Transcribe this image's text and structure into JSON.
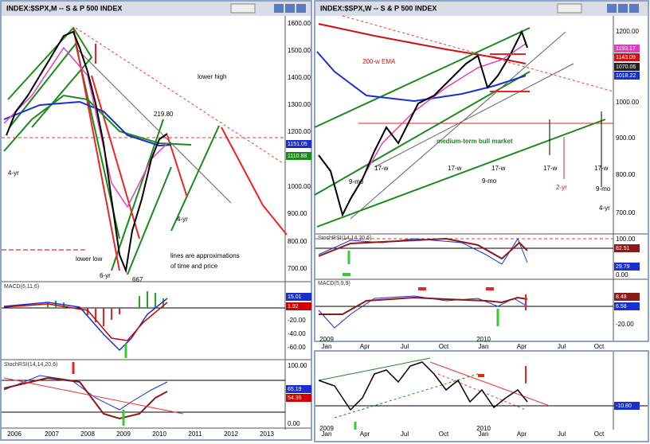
{
  "left_window": {
    "title": "INDEX:$SPX,M -- S & P 500 INDEX",
    "price_axis": [
      "1600.00",
      "1500.00",
      "1400.00",
      "1300.00",
      "1200.00",
      "1000.00",
      "900.00",
      "800.00",
      "700.00"
    ],
    "price_badges": [
      "1151.05",
      "1110.88"
    ],
    "annotations": [
      "219.80",
      "lower high",
      "4-yr",
      "4-yr",
      "lower low",
      "6-yr",
      "667",
      "lines are approximations",
      "of time and price"
    ],
    "macd": {
      "label": "MACD(6,11,6)",
      "badges": [
        "15.01",
        "1.92"
      ],
      "axis": [
        "-20.00",
        "-40.00",
        "-60.00"
      ]
    },
    "stoch": {
      "label": "StochRSI(14,14,20,6)",
      "badges": [
        "65.19",
        "54.35"
      ],
      "axis": [
        "100.00",
        "0.00"
      ]
    },
    "time_axis": [
      "2006",
      "2007",
      "2008",
      "2009",
      "2010",
      "2011",
      "2012",
      "2013"
    ]
  },
  "right_window": {
    "title": "INDEX:$SPX,W -- S & P 500 INDEX",
    "price_axis": [
      "1200.00",
      "1000.00",
      "900.00",
      "800.00",
      "700.00"
    ],
    "price_badges": [
      "1193.17",
      "1143.09",
      "1070.06",
      "1018.22"
    ],
    "annotations": [
      "200-w EMA",
      "medium-term bull market",
      "17-w",
      "17-w",
      "17-w",
      "17-w",
      "17-w",
      "9-mo",
      "9-mo",
      "9-mo",
      "2-yr",
      "4-yr"
    ],
    "stoch": {
      "label": "StochRSI(14,14,20,6)",
      "badges": [
        "82.51",
        "29.79"
      ],
      "axis": [
        "100.00",
        "0.00"
      ]
    },
    "macd": {
      "label": "MACD(5,9,9)",
      "badges": [
        "8.48",
        "6.58"
      ],
      "axis": [
        "-20.00"
      ]
    },
    "time_axis": [
      "Jan",
      "Apr",
      "Jul",
      "Oct",
      "Jan",
      "Apr",
      "Jul",
      "Oct"
    ],
    "years": [
      "2009",
      "2010"
    ]
  },
  "bottom_window": {
    "badge": "-10.80",
    "time_axis": [
      "Jan",
      "Apr",
      "Jul",
      "Oct",
      "Jan",
      "Apr",
      "Jul",
      "Oct"
    ],
    "years": [
      "2009",
      "2010"
    ]
  }
}
